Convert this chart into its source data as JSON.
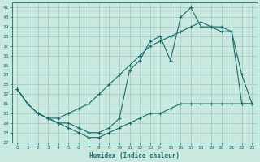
{
  "xlabel": "Humidex (Indice chaleur)",
  "bg_color": "#c8e8e0",
  "grid_color": "#a0c8c0",
  "line_color": "#1a6b6b",
  "xlim": [
    -0.5,
    23.5
  ],
  "ylim": [
    27,
    41.5
  ],
  "xticks": [
    0,
    1,
    2,
    3,
    4,
    5,
    6,
    7,
    8,
    9,
    10,
    11,
    12,
    13,
    14,
    15,
    16,
    17,
    18,
    19,
    20,
    21,
    22,
    23
  ],
  "yticks": [
    27,
    28,
    29,
    30,
    31,
    32,
    33,
    34,
    35,
    36,
    37,
    38,
    39,
    40,
    41
  ],
  "line1_x": [
    0,
    1,
    2,
    3,
    4,
    5,
    6,
    7,
    8,
    9,
    10,
    11,
    12,
    13,
    14,
    15,
    16,
    17,
    18,
    19,
    20,
    21,
    22,
    23
  ],
  "line1_y": [
    32.5,
    31.0,
    30.0,
    29.5,
    29.0,
    28.5,
    28.0,
    27.5,
    27.5,
    28.0,
    28.5,
    29.0,
    29.5,
    30.0,
    30.0,
    30.5,
    31.0,
    31.0,
    31.0,
    31.0,
    31.0,
    31.0,
    31.0,
    31.0
  ],
  "line2_x": [
    0,
    1,
    2,
    3,
    4,
    5,
    6,
    7,
    8,
    9,
    10,
    11,
    12,
    13,
    14,
    15,
    16,
    17,
    18,
    19,
    20,
    21,
    22,
    23
  ],
  "line2_y": [
    32.5,
    31.0,
    30.0,
    29.5,
    29.0,
    29.0,
    28.5,
    28.0,
    28.0,
    28.5,
    29.5,
    34.5,
    35.5,
    37.5,
    38.0,
    35.5,
    40.0,
    41.0,
    39.0,
    39.0,
    38.5,
    38.5,
    34.0,
    31.0
  ],
  "line3_x": [
    0,
    1,
    2,
    3,
    4,
    5,
    6,
    7,
    8,
    9,
    10,
    11,
    12,
    13,
    14,
    15,
    16,
    17,
    18,
    19,
    20,
    21,
    22,
    23
  ],
  "line3_y": [
    32.5,
    31.0,
    30.0,
    29.5,
    29.5,
    30.0,
    30.5,
    31.0,
    32.0,
    33.0,
    34.0,
    35.0,
    36.0,
    37.0,
    37.5,
    38.0,
    38.5,
    39.0,
    39.5,
    39.0,
    39.0,
    38.5,
    31.0,
    31.0
  ],
  "markersize": 3,
  "linewidth": 0.8
}
